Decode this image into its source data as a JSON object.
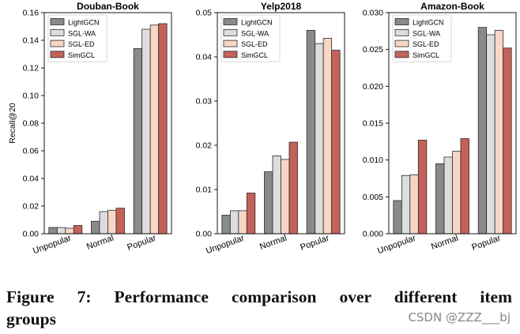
{
  "chart_data": [
    {
      "type": "bar",
      "title": "Douban-Book",
      "ylabel": "Recall@20",
      "xlabel": "",
      "categories": [
        "Unpopular",
        "Normal",
        "Popular"
      ],
      "ylim": [
        0,
        0.16
      ],
      "yticks": [
        "0.00",
        "0.02",
        "0.04",
        "0.06",
        "0.08",
        "0.10",
        "0.12",
        "0.14",
        "0.16"
      ],
      "series": [
        {
          "name": "LightGCN",
          "values": [
            0.0045,
            0.009,
            0.134
          ]
        },
        {
          "name": "SGL-WA",
          "values": [
            0.0045,
            0.016,
            0.148
          ]
        },
        {
          "name": "SGL-ED",
          "values": [
            0.004,
            0.017,
            0.151
          ]
        },
        {
          "name": "SimGCL",
          "values": [
            0.006,
            0.0185,
            0.152
          ]
        }
      ]
    },
    {
      "type": "bar",
      "title": "Yelp2018",
      "ylabel": "",
      "xlabel": "",
      "categories": [
        "Unpopular",
        "Normal",
        "Popular"
      ],
      "ylim": [
        0,
        0.05
      ],
      "yticks": [
        "0.00",
        "0.01",
        "0.02",
        "0.03",
        "0.04",
        "0.05"
      ],
      "series": [
        {
          "name": "LightGCN",
          "values": [
            0.0042,
            0.014,
            0.046
          ]
        },
        {
          "name": "SGL-WA",
          "values": [
            0.0052,
            0.0176,
            0.043
          ]
        },
        {
          "name": "SGL-ED",
          "values": [
            0.0052,
            0.0168,
            0.0442
          ]
        },
        {
          "name": "SimGCL",
          "values": [
            0.0092,
            0.0207,
            0.0415
          ]
        }
      ]
    },
    {
      "type": "bar",
      "title": "Amazon-Book",
      "ylabel": "",
      "xlabel": "",
      "categories": [
        "Unpopular",
        "Normal",
        "Popular"
      ],
      "ylim": [
        0,
        0.03
      ],
      "yticks": [
        "0.000",
        "0.005",
        "0.010",
        "0.015",
        "0.020",
        "0.025",
        "0.030"
      ],
      "series": [
        {
          "name": "LightGCN",
          "values": [
            0.0045,
            0.0095,
            0.028
          ]
        },
        {
          "name": "SGL-WA",
          "values": [
            0.0079,
            0.0104,
            0.027
          ]
        },
        {
          "name": "SGL-ED",
          "values": [
            0.008,
            0.0112,
            0.0276
          ]
        },
        {
          "name": "SimGCL",
          "values": [
            0.0127,
            0.0129,
            0.0252
          ]
        }
      ]
    }
  ],
  "series_colors": {
    "LightGCN": {
      "fill": "#8a8a8a",
      "stroke": "#2a2a2a"
    },
    "SGL-WA": {
      "fill": "#dddddd",
      "stroke": "#2a2a2a"
    },
    "SGL-ED": {
      "fill": "#f7d6c6",
      "stroke": "#2a2a2a"
    },
    "SimGCL": {
      "fill": "#c4625a",
      "stroke": "#2a2a2a"
    }
  },
  "caption": {
    "line1": "Figure 7: Performance comparison over different item",
    "line2": "groups"
  },
  "watermark": "CSDN @ZZZ___bj"
}
